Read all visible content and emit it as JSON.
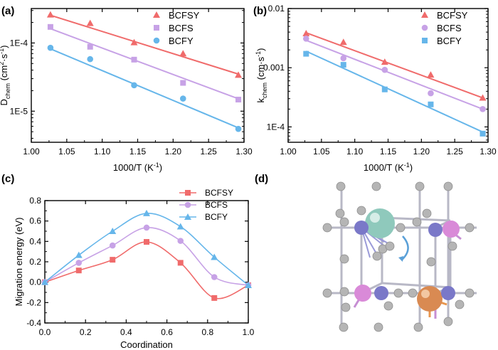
{
  "panels": {
    "a": {
      "label": "(a)"
    },
    "b": {
      "label": "(b)"
    },
    "c": {
      "label": "(c)"
    },
    "d": {
      "label": "(d)"
    }
  },
  "colors": {
    "BCFSY": "#f06b6b",
    "BCFS": "#c7a2e6",
    "BCFY": "#66b6ea"
  },
  "chart_data": [
    {
      "id": "a",
      "type": "scatter",
      "scale": "log",
      "xlabel": "1000/T (K",
      "xlabel_sup": "-1",
      "xlabel_end": ")",
      "ylabel_main": "D",
      "ylabel_sub": "chem",
      "ylabel_unit": " (cm",
      "ylabel_sup": "2",
      "ylabel_end": "·s",
      "ylabel_sup2": "-1",
      "ylabel_close": ")",
      "xlim": [
        1.0,
        1.3
      ],
      "ylim": [
        3.5e-06,
        0.00032
      ],
      "xticks": [
        {
          "v": 1.0,
          "label": "1.00"
        },
        {
          "v": 1.05,
          "label": "1.05"
        },
        {
          "v": 1.1,
          "label": "1.10"
        },
        {
          "v": 1.15,
          "label": "1.15"
        },
        {
          "v": 1.2,
          "label": "1.20"
        },
        {
          "v": 1.25,
          "label": "1.25"
        },
        {
          "v": 1.3,
          "label": "1.30"
        }
      ],
      "yticks": [
        {
          "v": 1e-05,
          "label": "1E-5"
        },
        {
          "v": 0.0001,
          "label": "1E-4"
        }
      ],
      "series": [
        {
          "name": "BCFSY",
          "marker": "triangle",
          "x": [
            1.027,
            1.083,
            1.145,
            1.214,
            1.292
          ],
          "y": [
            0.00026,
            0.000195,
            0.000102,
            7e-05,
            3.4e-05
          ],
          "fit": [
            [
              1.027,
              0.000255
            ],
            [
              1.292,
              3.5e-05
            ]
          ]
        },
        {
          "name": "BCFS",
          "marker": "square",
          "x": [
            1.027,
            1.083,
            1.145,
            1.214,
            1.292
          ],
          "y": [
            0.000172,
            8.8e-05,
            5.7e-05,
            2.6e-05,
            1.48e-05
          ],
          "fit": [
            [
              1.027,
              0.000162
            ],
            [
              1.292,
              1.52e-05
            ]
          ]
        },
        {
          "name": "BCFY",
          "marker": "circle",
          "x": [
            1.027,
            1.083,
            1.145,
            1.214,
            1.292
          ],
          "y": [
            8.5e-05,
            5.8e-05,
            2.4e-05,
            1.53e-05,
            5.5e-06
          ],
          "fit": [
            [
              1.027,
              8.2e-05
            ],
            [
              1.292,
              5.7e-06
            ]
          ]
        }
      ]
    },
    {
      "id": "b",
      "type": "scatter",
      "scale": "log",
      "xlabel": "1000/T (K",
      "xlabel_sup": "-1",
      "xlabel_end": ")",
      "ylabel_main": "k",
      "ylabel_sub": "chem",
      "ylabel_unit": " (cm·s",
      "ylabel_sup": "-1",
      "ylabel_end": ")",
      "xlim": [
        1.0,
        1.3
      ],
      "ylim": [
        5.5e-05,
        0.01
      ],
      "xticks": [
        {
          "v": 1.0,
          "label": "1.00"
        },
        {
          "v": 1.05,
          "label": "1.05"
        },
        {
          "v": 1.1,
          "label": "1.10"
        },
        {
          "v": 1.15,
          "label": "1.15"
        },
        {
          "v": 1.2,
          "label": "1.20"
        },
        {
          "v": 1.25,
          "label": "1.25"
        },
        {
          "v": 1.3,
          "label": "1.30"
        }
      ],
      "yticks": [
        {
          "v": 0.0001,
          "label": "1E-4"
        },
        {
          "v": 0.001,
          "label": "0.001"
        },
        {
          "v": 0.01,
          "label": "0.01"
        }
      ],
      "series": [
        {
          "name": "BCFSY",
          "marker": "triangle",
          "x": [
            1.027,
            1.083,
            1.145,
            1.214,
            1.292
          ],
          "y": [
            0.0038,
            0.0027,
            0.00125,
            0.00076,
            0.00031
          ],
          "fit": [
            [
              1.027,
              0.0039
            ],
            [
              1.292,
              0.00031
            ]
          ]
        },
        {
          "name": "BCFS",
          "marker": "circle",
          "x": [
            1.027,
            1.083,
            1.145,
            1.214,
            1.292
          ],
          "y": [
            0.0031,
            0.00145,
            0.00092,
            0.00037,
            0.0002
          ],
          "fit": [
            [
              1.027,
              0.0029
            ],
            [
              1.292,
              0.0002
            ]
          ]
        },
        {
          "name": "BCFY",
          "marker": "square",
          "x": [
            1.027,
            1.083,
            1.145,
            1.214,
            1.292
          ],
          "y": [
            0.00172,
            0.00112,
            0.00043,
            0.00024,
            7.7e-05
          ],
          "fit": [
            [
              1.027,
              0.0019
            ],
            [
              1.292,
              8.2e-05
            ]
          ]
        }
      ]
    },
    {
      "id": "c",
      "type": "line",
      "xlabel": "Coordination",
      "ylabel": "Migration energy (eV)",
      "xlim": [
        0.0,
        1.0
      ],
      "ylim": [
        -0.4,
        0.8
      ],
      "xticks": [
        {
          "v": 0.0,
          "label": "0.0"
        },
        {
          "v": 0.2,
          "label": "0.2"
        },
        {
          "v": 0.4,
          "label": "0.4"
        },
        {
          "v": 0.6,
          "label": "0.6"
        },
        {
          "v": 0.8,
          "label": "0.8"
        },
        {
          "v": 1.0,
          "label": "1.0"
        }
      ],
      "yticks": [
        {
          "v": -0.4,
          "label": "-0.4"
        },
        {
          "v": -0.2,
          "label": "-0.2"
        },
        {
          "v": 0.0,
          "label": "0.0"
        },
        {
          "v": 0.2,
          "label": "0.2"
        },
        {
          "v": 0.4,
          "label": "0.4"
        },
        {
          "v": 0.6,
          "label": "0.6"
        },
        {
          "v": 0.8,
          "label": "0.8"
        }
      ],
      "series": [
        {
          "name": "BCFSY",
          "marker": "square",
          "x": [
            0.0,
            0.167,
            0.333,
            0.5,
            0.667,
            0.833,
            1.0
          ],
          "y": [
            0.0,
            0.115,
            0.22,
            0.395,
            0.19,
            -0.155,
            -0.03
          ]
        },
        {
          "name": "BCFS",
          "marker": "circle",
          "x": [
            0.0,
            0.167,
            0.333,
            0.5,
            0.667,
            0.833,
            1.0
          ],
          "y": [
            0.0,
            0.19,
            0.36,
            0.535,
            0.405,
            0.05,
            -0.03
          ]
        },
        {
          "name": "BCFY",
          "marker": "triangle",
          "x": [
            0.0,
            0.167,
            0.333,
            0.5,
            0.667,
            0.833,
            1.0
          ],
          "y": [
            0.0,
            0.265,
            0.5,
            0.675,
            0.545,
            0.245,
            -0.03
          ]
        }
      ]
    }
  ]
}
